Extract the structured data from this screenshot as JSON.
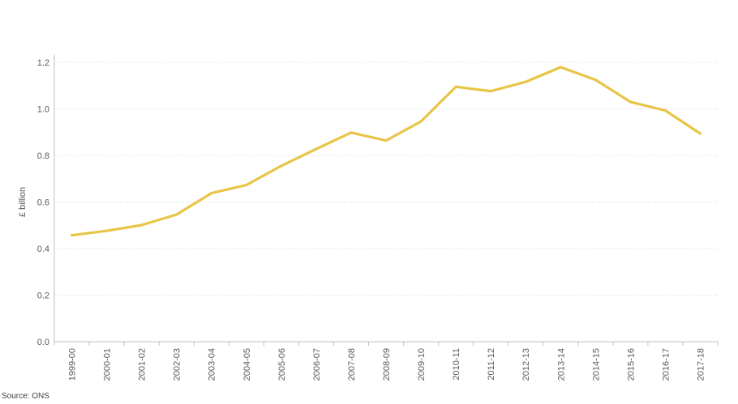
{
  "chart_data": {
    "type": "line",
    "title": "",
    "xlabel": "",
    "ylabel": "£ billion",
    "categories": [
      "1999-00",
      "2000-01",
      "2001-02",
      "2002-03",
      "2003-04",
      "2004-05",
      "2005-06",
      "2006-07",
      "2007-08",
      "2008-09",
      "2009-10",
      "2010-11",
      "2011-12",
      "2012-13",
      "2013-14",
      "2014-15",
      "2015-16",
      "2016-17",
      "2017-18"
    ],
    "series": [
      {
        "values": [
          0.457,
          0.476,
          0.501,
          0.546,
          0.638,
          0.673,
          0.755,
          0.828,
          0.898,
          0.864,
          0.946,
          1.095,
          1.076,
          1.116,
          1.179,
          1.125,
          1.03,
          0.993,
          0.894
        ]
      }
    ],
    "ylim": [
      0,
      1.2
    ],
    "yticks": [
      "0.0",
      "0.2",
      "0.4",
      "0.6",
      "0.8",
      "1.0",
      "1.2"
    ],
    "grid": true,
    "legend": "none",
    "colors": {
      "line": "#e8c547",
      "grid": "#d9d9d9",
      "axis": "#bfbfbf",
      "text": "#595959"
    }
  },
  "source": "Source: ONS"
}
